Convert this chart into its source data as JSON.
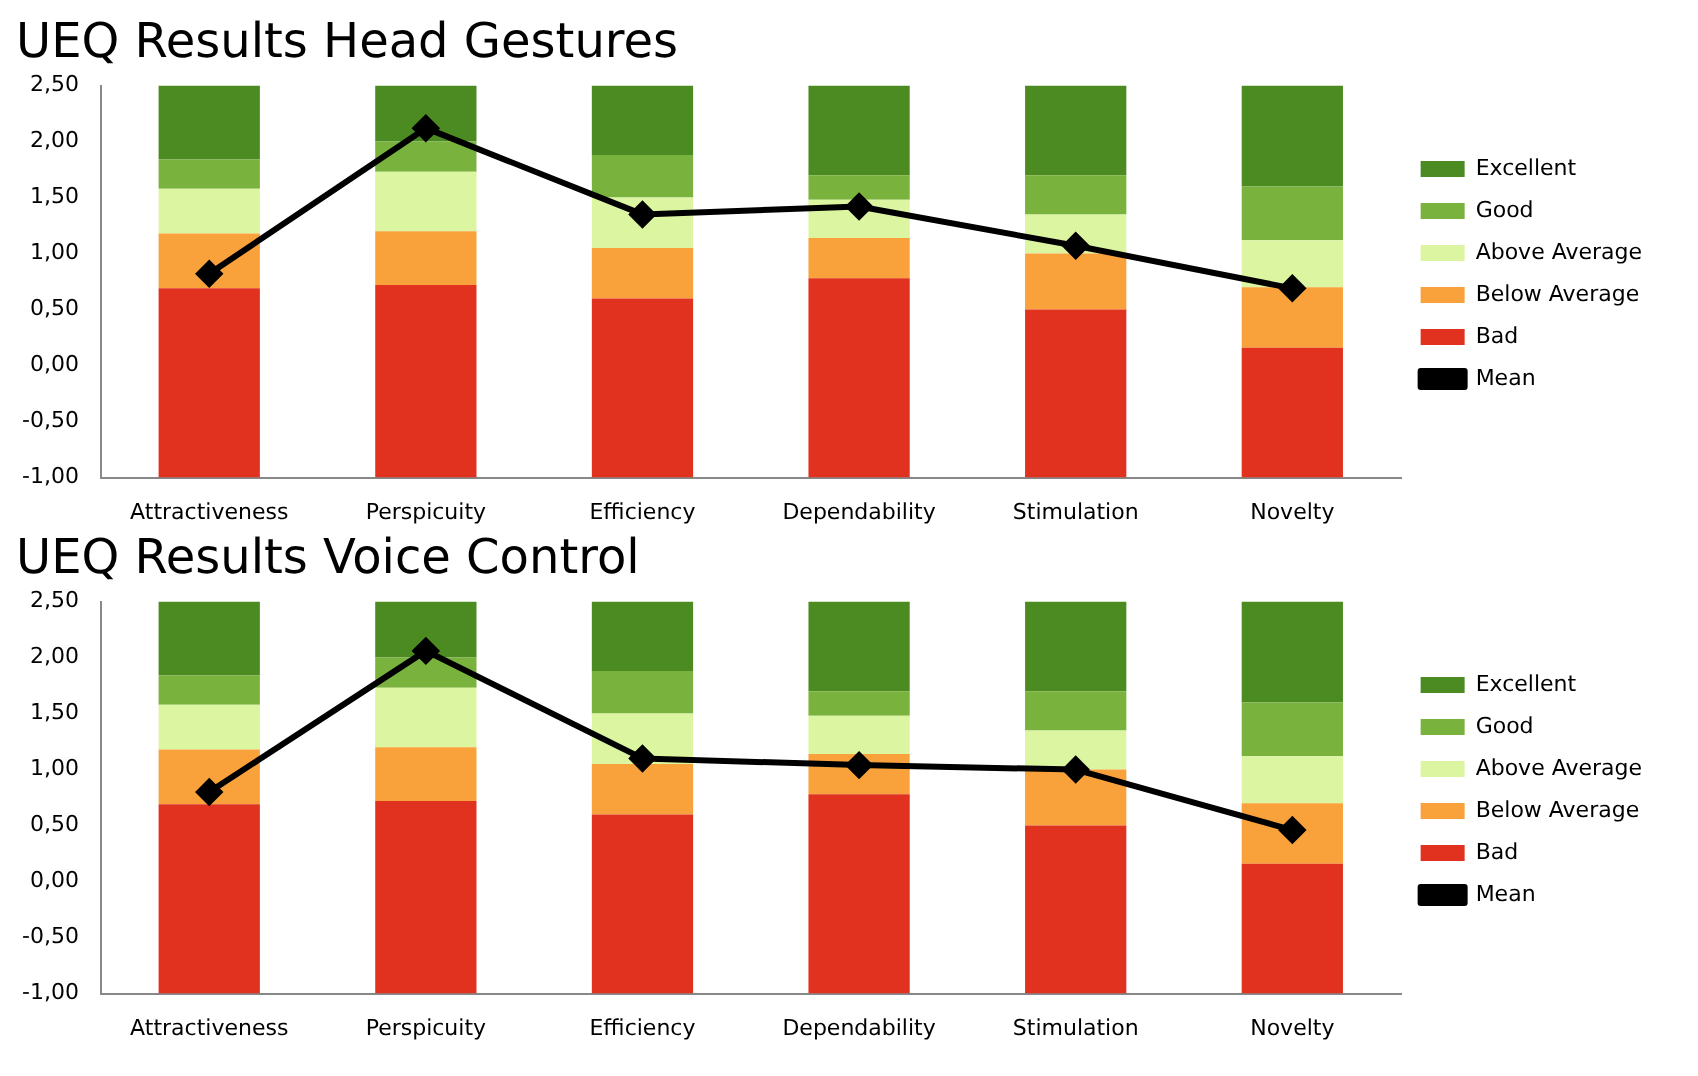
{
  "chart_data": [
    {
      "type": "bar",
      "title": "UEQ Results Head Gestures",
      "legend": "right",
      "grid": false,
      "categories": [
        "Attractiveness",
        "Perspicuity",
        "Efficiency",
        "Dependability",
        "Stimulation",
        "Novelty"
      ],
      "ylim": [
        -1,
        2.5
      ],
      "yticks": [
        {
          "value": -1,
          "label": "-1,00"
        },
        {
          "value": -0.5,
          "label": "-0,50"
        },
        {
          "value": 0,
          "label": "0,00"
        },
        {
          "value": 0.5,
          "label": "0,50"
        },
        {
          "value": 1,
          "label": "1,00"
        },
        {
          "value": 1.5,
          "label": "1,50"
        },
        {
          "value": 2,
          "label": "2,00"
        },
        {
          "value": 2.5,
          "label": "2,50"
        }
      ],
      "series": [
        {
          "name": "Bad",
          "color": "#e0321e",
          "base": [
            -1,
            -1,
            -1,
            -1,
            -1,
            -1
          ],
          "values": [
            1.69,
            1.72,
            1.6,
            1.78,
            1.5,
            1.16
          ]
        },
        {
          "name": "Below Average",
          "color": "#f9a23b",
          "base": [
            0.69,
            0.72,
            0.6,
            0.78,
            0.5,
            0.16
          ],
          "values": [
            0.49,
            0.48,
            0.45,
            0.36,
            0.5,
            0.54
          ]
        },
        {
          "name": "Above Average",
          "color": "#dcf5a0",
          "base": [
            1.18,
            1.2,
            1.05,
            1.14,
            1.0,
            0.7
          ],
          "values": [
            0.4,
            0.53,
            0.45,
            0.34,
            0.35,
            0.42
          ]
        },
        {
          "name": "Good",
          "color": "#79b23c",
          "base": [
            1.58,
            1.73,
            1.5,
            1.48,
            1.35,
            1.12
          ],
          "values": [
            0.26,
            0.27,
            0.38,
            0.22,
            0.35,
            0.48
          ]
        },
        {
          "name": "Excellent",
          "color": "#4b8b22",
          "base": [
            1.84,
            2.0,
            1.88,
            1.7,
            1.7,
            1.6
          ],
          "values": [
            0.66,
            0.5,
            0.62,
            0.8,
            0.8,
            0.9
          ]
        },
        {
          "name": "Mean",
          "type": "line",
          "color": "#000000",
          "marker": "diamond",
          "values": [
            0.82,
            2.12,
            1.35,
            1.42,
            1.07,
            0.69
          ]
        }
      ]
    },
    {
      "type": "bar",
      "title": "UEQ Results Voice Control",
      "legend": "right",
      "grid": false,
      "categories": [
        "Attractiveness",
        "Perspicuity",
        "Efficiency",
        "Dependability",
        "Stimulation",
        "Novelty"
      ],
      "ylim": [
        -1,
        2.5
      ],
      "yticks": [
        {
          "value": -1,
          "label": "-1,00"
        },
        {
          "value": -0.5,
          "label": "-0,50"
        },
        {
          "value": 0,
          "label": "0,00"
        },
        {
          "value": 0.5,
          "label": "0,50"
        },
        {
          "value": 1,
          "label": "1,00"
        },
        {
          "value": 1.5,
          "label": "1,50"
        },
        {
          "value": 2,
          "label": "2,00"
        },
        {
          "value": 2.5,
          "label": "2,50"
        }
      ],
      "series": [
        {
          "name": "Bad",
          "color": "#e0321e",
          "base": [
            -1,
            -1,
            -1,
            -1,
            -1,
            -1
          ],
          "values": [
            1.69,
            1.72,
            1.6,
            1.78,
            1.5,
            1.16
          ]
        },
        {
          "name": "Below Average",
          "color": "#f9a23b",
          "base": [
            0.69,
            0.72,
            0.6,
            0.78,
            0.5,
            0.16
          ],
          "values": [
            0.49,
            0.48,
            0.45,
            0.36,
            0.5,
            0.54
          ]
        },
        {
          "name": "Above Average",
          "color": "#dcf5a0",
          "base": [
            1.18,
            1.2,
            1.05,
            1.14,
            1.0,
            0.7
          ],
          "values": [
            0.4,
            0.53,
            0.45,
            0.34,
            0.35,
            0.42
          ]
        },
        {
          "name": "Good",
          "color": "#79b23c",
          "base": [
            1.58,
            1.73,
            1.5,
            1.48,
            1.35,
            1.12
          ],
          "values": [
            0.26,
            0.27,
            0.38,
            0.22,
            0.35,
            0.48
          ]
        },
        {
          "name": "Excellent",
          "color": "#4b8b22",
          "base": [
            1.84,
            2.0,
            1.88,
            1.7,
            1.7,
            1.6
          ],
          "values": [
            0.66,
            0.5,
            0.62,
            0.8,
            0.8,
            0.9
          ]
        },
        {
          "name": "Mean",
          "type": "line",
          "color": "#000000",
          "marker": "diamond",
          "values": [
            0.8,
            2.06,
            1.1,
            1.04,
            1.0,
            0.46
          ]
        }
      ]
    }
  ]
}
